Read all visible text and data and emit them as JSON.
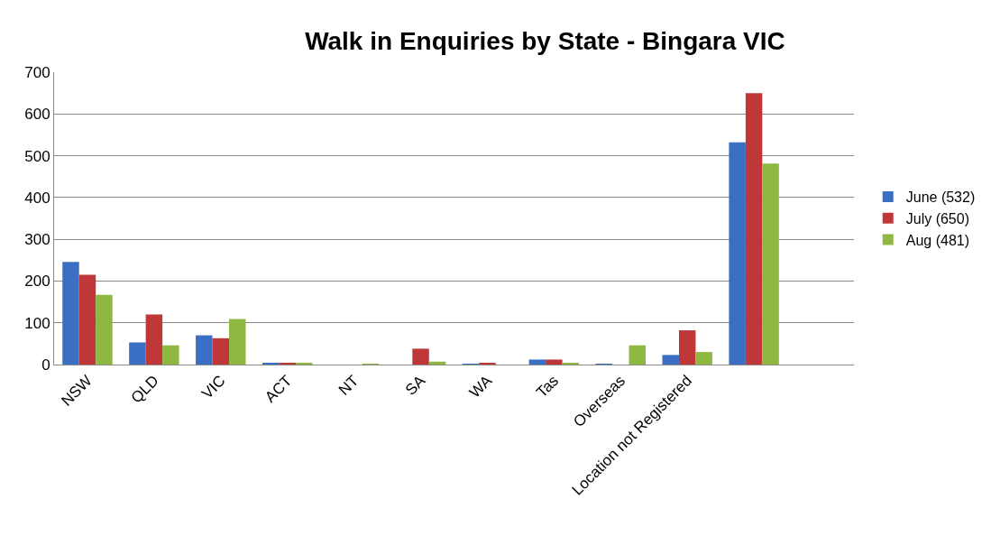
{
  "chart_data": {
    "type": "bar",
    "title": "Walk in Enquiries by State - Bingara VIC",
    "categories": [
      "NSW",
      "QLD",
      "VIC",
      "ACT",
      "NT",
      "SA",
      "WA",
      "Tas",
      "Overseas",
      "Location not Registered",
      null,
      null
    ],
    "series": [
      {
        "name": "June (532)",
        "color": "#3b6fc4",
        "values": [
          246,
          53,
          70,
          3,
          0,
          0,
          2,
          12,
          2,
          23,
          532,
          null
        ]
      },
      {
        "name": "July (650)",
        "color": "#c0373a",
        "values": [
          215,
          120,
          63,
          3,
          0,
          38,
          3,
          12,
          0,
          82,
          650,
          null
        ]
      },
      {
        "name": "Aug (481)",
        "color": "#8fb842",
        "values": [
          167,
          46,
          109,
          3,
          1,
          7,
          0,
          3,
          46,
          30,
          481,
          null
        ]
      }
    ],
    "ylim": [
      0,
      700
    ],
    "yticks": [
      0,
      100,
      200,
      300,
      400,
      500,
      600,
      700
    ],
    "grid": "y",
    "legend": "right"
  }
}
